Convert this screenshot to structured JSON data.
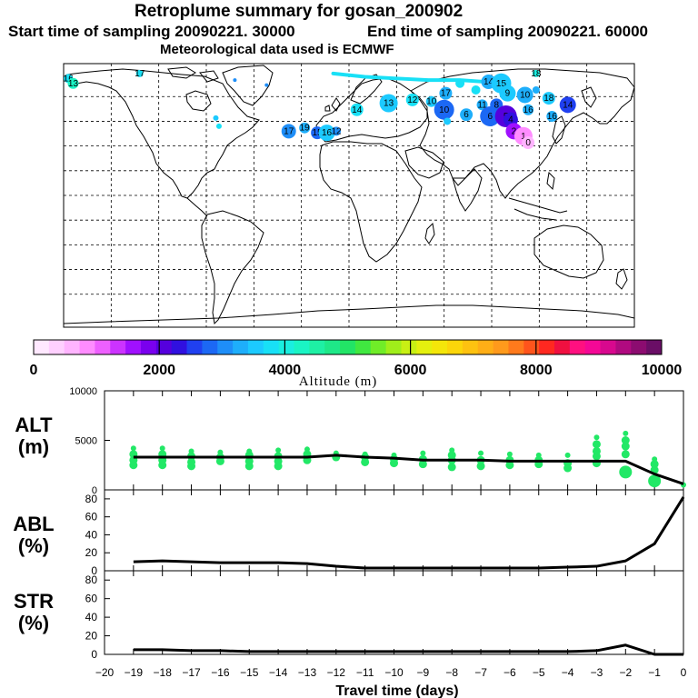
{
  "header": {
    "title": "Retroplume summary for gosan_200902",
    "line2_start": "Start time of sampling 20090221. 30000",
    "line2_end": "End time of sampling 20090221. 60000",
    "line3": "Meteorological data used is ECMWF"
  },
  "colorbar": {
    "colors": [
      "#ffe8ff",
      "#ffd0ff",
      "#ffb4ff",
      "#ff8cff",
      "#ee60ff",
      "#cc33ff",
      "#a010ff",
      "#7a00ee",
      "#5500dd",
      "#3010e0",
      "#2040f0",
      "#1c68f4",
      "#1e8ef8",
      "#1eaefb",
      "#1ccaff",
      "#18e0f6",
      "#1aeee0",
      "#1af4c4",
      "#1ef0a4",
      "#1ee888",
      "#22e466",
      "#40e840",
      "#70ec28",
      "#a0ee1a",
      "#c8f014",
      "#e4f00e",
      "#f4e60a",
      "#fcd60a",
      "#fec210",
      "#ffae16",
      "#ff9a1c",
      "#ff7a1c",
      "#ff541c",
      "#ff2820",
      "#f01040",
      "#ff1080",
      "#f40896",
      "#d8088e",
      "#b00a80",
      "#8c0c70",
      "#6a0e66"
    ],
    "ticks": [
      "0",
      "2000",
      "4000",
      "6000",
      "8000",
      "10000"
    ],
    "label": "Altitude (m)"
  },
  "panels": {
    "alt": {
      "label_top": "ALT",
      "label_bottom": "(m)",
      "yticks": [
        "0",
        "5000",
        "10000"
      ]
    },
    "abl": {
      "label_top": "ABL",
      "label_bottom": "(%)",
      "yticks": [
        "0",
        "20",
        "40",
        "60",
        "80"
      ]
    },
    "str": {
      "label_top": "STR",
      "label_bottom": "(%)",
      "yticks": [
        "0",
        "20",
        "40",
        "60",
        "80"
      ]
    }
  },
  "xaxis": {
    "ticks": [
      "−20",
      "−19",
      "−18",
      "−17",
      "−16",
      "−15",
      "−14",
      "−13",
      "−12",
      "−11",
      "−10",
      "−9",
      "−8",
      "−7",
      "−6",
      "−5",
      "−4",
      "−3",
      "−2",
      "−1",
      "0"
    ],
    "label": "Travel time (days)"
  },
  "chart_data": {
    "type": "composite",
    "x_days": [
      -19,
      -18,
      -17,
      -16,
      -15,
      -14,
      -13,
      -12,
      -11,
      -10,
      -9,
      -8,
      -7,
      -6,
      -5,
      -4,
      -3,
      -2,
      -1,
      0
    ],
    "alt_mean_m": [
      3300,
      3300,
      3300,
      3300,
      3300,
      3300,
      3300,
      3500,
      3300,
      3200,
      3000,
      3000,
      3000,
      2900,
      2900,
      2900,
      2900,
      2900,
      1600,
      600
    ],
    "alt_ylim": [
      0,
      10000
    ],
    "abl_pct": [
      10,
      11,
      10,
      9,
      9,
      9,
      8,
      5,
      3,
      3,
      3,
      3,
      3,
      3,
      3,
      4,
      5,
      11,
      30,
      82
    ],
    "abl_ylim": [
      0,
      90
    ],
    "str_pct": [
      5,
      5,
      4,
      4,
      3,
      3,
      3,
      3,
      3,
      3,
      3,
      3,
      3,
      3,
      3,
      3,
      4,
      10,
      0,
      0
    ],
    "str_ylim": [
      0,
      90
    ],
    "xlim": [
      -20,
      0
    ],
    "map_clusters": [
      {
        "label": "16",
        "lon": -177,
        "lat": 71,
        "alt": 3800,
        "r": 5
      },
      {
        "label": "13",
        "lon": -174,
        "lat": 68,
        "alt": 4200,
        "r": 6
      },
      {
        "label": "17",
        "lon": -132,
        "lat": 74,
        "alt": 3900,
        "r": 4
      },
      {
        "label": "18",
        "lon": 118,
        "lat": 74,
        "alt": 4000,
        "r": 4
      },
      {
        "label": "17",
        "lon": -38,
        "lat": 39,
        "alt": 3100,
        "r": 8
      },
      {
        "label": "19",
        "lon": -28,
        "lat": 41,
        "alt": 3300,
        "r": 6
      },
      {
        "label": "15",
        "lon": -20,
        "lat": 38,
        "alt": 2700,
        "r": 7
      },
      {
        "label": "16",
        "lon": -14,
        "lat": 38,
        "alt": 3600,
        "r": 9
      },
      {
        "label": "12",
        "lon": -8,
        "lat": 39,
        "alt": 3000,
        "r": 5
      },
      {
        "label": "14",
        "lon": 5,
        "lat": 52,
        "alt": 3800,
        "r": 7
      },
      {
        "label": "13",
        "lon": 25,
        "lat": 56,
        "alt": 3600,
        "r": 10
      },
      {
        "label": "12",
        "lon": 40,
        "lat": 58,
        "alt": 3700,
        "r": 7
      },
      {
        "label": "10",
        "lon": 52,
        "lat": 57,
        "alt": 3500,
        "r": 6
      },
      {
        "label": "17",
        "lon": 61,
        "lat": 62,
        "alt": 3400,
        "r": 7
      },
      {
        "label": "10",
        "lon": 60,
        "lat": 52,
        "alt": 2800,
        "r": 11
      },
      {
        "label": "6",
        "lon": 74,
        "lat": 49,
        "alt": 3200,
        "r": 7
      },
      {
        "label": "14",
        "lon": 88,
        "lat": 69,
        "alt": 3400,
        "r": 8
      },
      {
        "label": "15",
        "lon": 96,
        "lat": 68,
        "alt": 3500,
        "r": 11
      },
      {
        "label": "11",
        "lon": 84,
        "lat": 55,
        "alt": 3300,
        "r": 6
      },
      {
        "label": "8",
        "lon": 93,
        "lat": 55,
        "alt": 2700,
        "r": 7
      },
      {
        "label": "9",
        "lon": 100,
        "lat": 62,
        "alt": 3500,
        "r": 9
      },
      {
        "label": "10",
        "lon": 111,
        "lat": 61,
        "alt": 3400,
        "r": 9
      },
      {
        "label": "6",
        "lon": 89,
        "lat": 48,
        "alt": 2800,
        "r": 11
      },
      {
        "label": "5",
        "lon": 99,
        "lat": 48,
        "alt": 2000,
        "r": 12
      },
      {
        "label": "4",
        "lon": 102,
        "lat": 46,
        "alt": 2300,
        "r": 8
      },
      {
        "label": "18",
        "lon": 126,
        "lat": 59,
        "alt": 3600,
        "r": 7
      },
      {
        "label": "16",
        "lon": 113,
        "lat": 52,
        "alt": 3400,
        "r": 6
      },
      {
        "label": "14",
        "lon": 138,
        "lat": 55,
        "alt": 2600,
        "r": 9
      },
      {
        "label": "16",
        "lon": 128,
        "lat": 48,
        "alt": 3300,
        "r": 6
      },
      {
        "label": "2",
        "lon": 104,
        "lat": 39,
        "alt": 1500,
        "r": 9
      },
      {
        "label": "1",
        "lon": 110,
        "lat": 36,
        "alt": 800,
        "r": 10
      },
      {
        "label": "0",
        "lon": 113,
        "lat": 32,
        "alt": 500,
        "r": 7
      },
      {
        "label": "",
        "lon": -84,
        "lat": 47,
        "alt": 3600,
        "r": 3
      },
      {
        "label": "",
        "lon": -82,
        "lat": 42,
        "alt": 3800,
        "r": 3
      },
      {
        "label": "",
        "lon": -72,
        "lat": 70,
        "alt": 3000,
        "r": 2
      },
      {
        "label": "",
        "lon": -52,
        "lat": 67,
        "alt": 3000,
        "r": 2
      },
      {
        "label": "",
        "lon": 70,
        "lat": 68,
        "alt": 3800,
        "r": 5
      },
      {
        "label": "",
        "lon": 62,
        "lat": 45,
        "alt": 3600,
        "r": 4
      },
      {
        "label": "",
        "lon": 118,
        "lat": 64,
        "alt": 3300,
        "r": 4
      },
      {
        "label": "",
        "lon": 80,
        "lat": 64,
        "alt": 3700,
        "r": 5
      }
    ],
    "alt_scatter": [
      {
        "x": -19,
        "ys": [
          4200,
          3600,
          3000,
          2500
        ]
      },
      {
        "x": -18,
        "ys": [
          4200,
          3600,
          3000,
          2500
        ]
      },
      {
        "x": -17,
        "ys": [
          3900,
          3400,
          2800,
          2400
        ]
      },
      {
        "x": -16,
        "ys": [
          3800,
          3300,
          2900
        ]
      },
      {
        "x": -15,
        "ys": [
          3900,
          3500,
          2900,
          2400
        ]
      },
      {
        "x": -14,
        "ys": [
          4000,
          3400,
          2900,
          2400
        ]
      },
      {
        "x": -13,
        "ys": [
          4100,
          3600,
          3000
        ]
      },
      {
        "x": -12,
        "ys": [
          3700,
          3300
        ]
      },
      {
        "x": -11,
        "ys": [
          3600,
          3300,
          2800
        ]
      },
      {
        "x": -10,
        "ys": [
          3500,
          3100,
          2700
        ]
      },
      {
        "x": -9,
        "ys": [
          3700,
          3100,
          2600
        ]
      },
      {
        "x": -8,
        "ys": [
          4000,
          3500,
          3000,
          2300
        ]
      },
      {
        "x": -7,
        "ys": [
          3700,
          3000,
          2400
        ]
      },
      {
        "x": -6,
        "ys": [
          3600,
          3000,
          2500
        ]
      },
      {
        "x": -5,
        "ys": [
          3500,
          3000,
          2600
        ]
      },
      {
        "x": -4,
        "ys": [
          3500,
          2700,
          2200
        ]
      },
      {
        "x": -3,
        "ys": [
          5300,
          4600,
          3900,
          3400,
          2700
        ]
      },
      {
        "x": -2,
        "ys": [
          5700,
          5000,
          4400,
          3600,
          1800
        ]
      },
      {
        "x": -1,
        "ys": [
          3100,
          2600,
          2000,
          900
        ]
      },
      {
        "x": 0,
        "ys": [
          500
        ]
      }
    ]
  }
}
